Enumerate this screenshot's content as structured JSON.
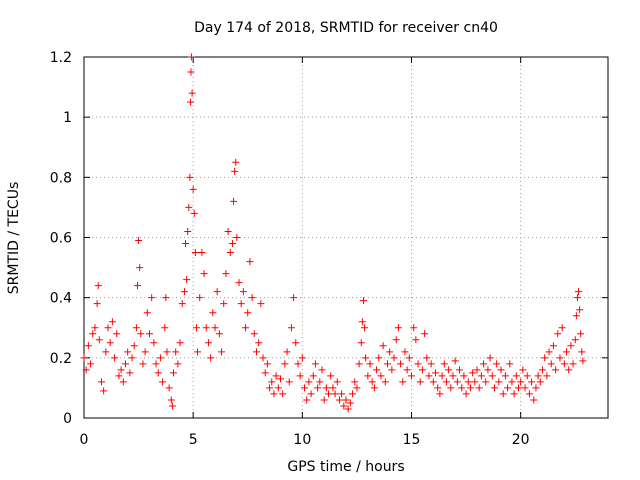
{
  "chart_data": {
    "type": "scatter",
    "title": "Day 174 of 2018, SRMTID for receiver cn40",
    "xlabel": "GPS time / hours",
    "ylabel": "SRMTID / TECUs",
    "xlim": [
      0,
      24
    ],
    "ylim": [
      0,
      1.2
    ],
    "x_ticks": [
      0,
      5,
      10,
      15,
      20
    ],
    "x_tick_labels": [
      "0",
      "5",
      "10",
      "15",
      "20"
    ],
    "y_ticks": [
      0,
      0.2,
      0.4,
      0.6,
      0.8,
      1.0,
      1.2
    ],
    "y_tick_labels": [
      "0",
      "0.2",
      "0.4",
      "0.6",
      "0.8",
      "1",
      "1.2"
    ],
    "grid": true,
    "marker": "+",
    "color": "#ff0000",
    "series": [
      {
        "name": "SRMTID",
        "points": [
          [
            0.0,
            0.2
          ],
          [
            0.1,
            0.16
          ],
          [
            0.2,
            0.24
          ],
          [
            0.3,
            0.18
          ],
          [
            0.4,
            0.28
          ],
          [
            0.5,
            0.3
          ],
          [
            0.6,
            0.38
          ],
          [
            0.65,
            0.44
          ],
          [
            0.7,
            0.26
          ],
          [
            0.8,
            0.12
          ],
          [
            0.9,
            0.09
          ],
          [
            1.0,
            0.22
          ],
          [
            1.1,
            0.3
          ],
          [
            1.2,
            0.25
          ],
          [
            1.3,
            0.32
          ],
          [
            1.4,
            0.2
          ],
          [
            1.5,
            0.28
          ],
          [
            1.6,
            0.14
          ],
          [
            1.7,
            0.16
          ],
          [
            1.8,
            0.12
          ],
          [
            1.9,
            0.18
          ],
          [
            2.0,
            0.22
          ],
          [
            2.1,
            0.15
          ],
          [
            2.2,
            0.2
          ],
          [
            2.3,
            0.24
          ],
          [
            2.4,
            0.3
          ],
          [
            2.45,
            0.44
          ],
          [
            2.5,
            0.59
          ],
          [
            2.55,
            0.5
          ],
          [
            2.6,
            0.28
          ],
          [
            2.7,
            0.18
          ],
          [
            2.8,
            0.22
          ],
          [
            2.9,
            0.35
          ],
          [
            3.0,
            0.28
          ],
          [
            3.1,
            0.4
          ],
          [
            3.2,
            0.25
          ],
          [
            3.3,
            0.18
          ],
          [
            3.4,
            0.15
          ],
          [
            3.5,
            0.2
          ],
          [
            3.6,
            0.12
          ],
          [
            3.7,
            0.3
          ],
          [
            3.75,
            0.4
          ],
          [
            3.8,
            0.22
          ],
          [
            3.9,
            0.1
          ],
          [
            4.0,
            0.06
          ],
          [
            4.05,
            0.04
          ],
          [
            4.1,
            0.15
          ],
          [
            4.2,
            0.22
          ],
          [
            4.3,
            0.18
          ],
          [
            4.4,
            0.25
          ],
          [
            4.5,
            0.38
          ],
          [
            4.6,
            0.42
          ],
          [
            4.65,
            0.58
          ],
          [
            4.7,
            0.46
          ],
          [
            4.75,
            0.62
          ],
          [
            4.8,
            0.7
          ],
          [
            4.85,
            0.8
          ],
          [
            4.88,
            1.05
          ],
          [
            4.9,
            1.15
          ],
          [
            4.92,
            1.2
          ],
          [
            4.95,
            1.08
          ],
          [
            5.0,
            0.76
          ],
          [
            5.05,
            0.68
          ],
          [
            5.1,
            0.55
          ],
          [
            5.15,
            0.3
          ],
          [
            5.2,
            0.22
          ],
          [
            5.3,
            0.4
          ],
          [
            5.4,
            0.55
          ],
          [
            5.5,
            0.48
          ],
          [
            5.6,
            0.3
          ],
          [
            5.7,
            0.25
          ],
          [
            5.8,
            0.2
          ],
          [
            5.9,
            0.35
          ],
          [
            6.0,
            0.3
          ],
          [
            6.1,
            0.42
          ],
          [
            6.2,
            0.28
          ],
          [
            6.3,
            0.22
          ],
          [
            6.4,
            0.38
          ],
          [
            6.5,
            0.48
          ],
          [
            6.6,
            0.62
          ],
          [
            6.7,
            0.55
          ],
          [
            6.8,
            0.58
          ],
          [
            6.85,
            0.72
          ],
          [
            6.9,
            0.82
          ],
          [
            6.95,
            0.85
          ],
          [
            7.0,
            0.6
          ],
          [
            7.1,
            0.45
          ],
          [
            7.2,
            0.38
          ],
          [
            7.3,
            0.42
          ],
          [
            7.4,
            0.3
          ],
          [
            7.5,
            0.35
          ],
          [
            7.6,
            0.52
          ],
          [
            7.7,
            0.4
          ],
          [
            7.8,
            0.28
          ],
          [
            7.9,
            0.22
          ],
          [
            8.0,
            0.25
          ],
          [
            8.1,
            0.38
          ],
          [
            8.2,
            0.2
          ],
          [
            8.3,
            0.15
          ],
          [
            8.4,
            0.18
          ],
          [
            8.5,
            0.1
          ],
          [
            8.6,
            0.12
          ],
          [
            8.7,
            0.08
          ],
          [
            8.8,
            0.14
          ],
          [
            8.9,
            0.1
          ],
          [
            9.0,
            0.13
          ],
          [
            9.1,
            0.08
          ],
          [
            9.2,
            0.18
          ],
          [
            9.3,
            0.22
          ],
          [
            9.4,
            0.12
          ],
          [
            9.5,
            0.3
          ],
          [
            9.6,
            0.4
          ],
          [
            9.7,
            0.25
          ],
          [
            9.8,
            0.18
          ],
          [
            9.9,
            0.14
          ],
          [
            10.0,
            0.2
          ],
          [
            10.1,
            0.1
          ],
          [
            10.2,
            0.06
          ],
          [
            10.3,
            0.12
          ],
          [
            10.4,
            0.08
          ],
          [
            10.5,
            0.14
          ],
          [
            10.6,
            0.18
          ],
          [
            10.7,
            0.1
          ],
          [
            10.8,
            0.12
          ],
          [
            10.9,
            0.16
          ],
          [
            11.0,
            0.06
          ],
          [
            11.1,
            0.1
          ],
          [
            11.2,
            0.08
          ],
          [
            11.3,
            0.14
          ],
          [
            11.4,
            0.1
          ],
          [
            11.5,
            0.08
          ],
          [
            11.6,
            0.12
          ],
          [
            11.7,
            0.06
          ],
          [
            11.8,
            0.08
          ],
          [
            11.9,
            0.04
          ],
          [
            12.0,
            0.06
          ],
          [
            12.1,
            0.03
          ],
          [
            12.2,
            0.05
          ],
          [
            12.3,
            0.08
          ],
          [
            12.4,
            0.12
          ],
          [
            12.5,
            0.1
          ],
          [
            12.6,
            0.18
          ],
          [
            12.7,
            0.25
          ],
          [
            12.75,
            0.32
          ],
          [
            12.8,
            0.39
          ],
          [
            12.85,
            0.3
          ],
          [
            12.9,
            0.2
          ],
          [
            13.0,
            0.14
          ],
          [
            13.1,
            0.18
          ],
          [
            13.2,
            0.12
          ],
          [
            13.3,
            0.1
          ],
          [
            13.4,
            0.16
          ],
          [
            13.5,
            0.2
          ],
          [
            13.6,
            0.14
          ],
          [
            13.7,
            0.24
          ],
          [
            13.8,
            0.12
          ],
          [
            13.9,
            0.18
          ],
          [
            14.0,
            0.22
          ],
          [
            14.1,
            0.16
          ],
          [
            14.2,
            0.2
          ],
          [
            14.3,
            0.26
          ],
          [
            14.4,
            0.3
          ],
          [
            14.5,
            0.18
          ],
          [
            14.6,
            0.12
          ],
          [
            14.7,
            0.22
          ],
          [
            14.8,
            0.16
          ],
          [
            14.9,
            0.2
          ],
          [
            15.0,
            0.14
          ],
          [
            15.1,
            0.3
          ],
          [
            15.2,
            0.26
          ],
          [
            15.3,
            0.18
          ],
          [
            15.4,
            0.12
          ],
          [
            15.5,
            0.16
          ],
          [
            15.6,
            0.28
          ],
          [
            15.7,
            0.2
          ],
          [
            15.8,
            0.14
          ],
          [
            15.9,
            0.18
          ],
          [
            16.0,
            0.12
          ],
          [
            16.1,
            0.15
          ],
          [
            16.2,
            0.1
          ],
          [
            16.3,
            0.08
          ],
          [
            16.4,
            0.14
          ],
          [
            16.5,
            0.18
          ],
          [
            16.6,
            0.12
          ],
          [
            16.7,
            0.16
          ],
          [
            16.8,
            0.1
          ],
          [
            16.9,
            0.14
          ],
          [
            17.0,
            0.19
          ],
          [
            17.1,
            0.12
          ],
          [
            17.2,
            0.16
          ],
          [
            17.3,
            0.1
          ],
          [
            17.4,
            0.14
          ],
          [
            17.5,
            0.08
          ],
          [
            17.6,
            0.12
          ],
          [
            17.7,
            0.1
          ],
          [
            17.8,
            0.15
          ],
          [
            17.9,
            0.12
          ],
          [
            18.0,
            0.16
          ],
          [
            18.1,
            0.1
          ],
          [
            18.2,
            0.14
          ],
          [
            18.3,
            0.18
          ],
          [
            18.4,
            0.12
          ],
          [
            18.5,
            0.16
          ],
          [
            18.6,
            0.2
          ],
          [
            18.7,
            0.14
          ],
          [
            18.8,
            0.1
          ],
          [
            18.9,
            0.18
          ],
          [
            19.0,
            0.12
          ],
          [
            19.1,
            0.16
          ],
          [
            19.2,
            0.08
          ],
          [
            19.3,
            0.14
          ],
          [
            19.4,
            0.1
          ],
          [
            19.5,
            0.18
          ],
          [
            19.6,
            0.12
          ],
          [
            19.7,
            0.08
          ],
          [
            19.8,
            0.14
          ],
          [
            19.9,
            0.1
          ],
          [
            20.0,
            0.12
          ],
          [
            20.1,
            0.16
          ],
          [
            20.2,
            0.1
          ],
          [
            20.3,
            0.14
          ],
          [
            20.4,
            0.08
          ],
          [
            20.5,
            0.12
          ],
          [
            20.6,
            0.06
          ],
          [
            20.7,
            0.1
          ],
          [
            20.8,
            0.14
          ],
          [
            20.9,
            0.12
          ],
          [
            21.0,
            0.16
          ],
          [
            21.1,
            0.2
          ],
          [
            21.2,
            0.14
          ],
          [
            21.3,
            0.22
          ],
          [
            21.4,
            0.18
          ],
          [
            21.5,
            0.24
          ],
          [
            21.6,
            0.16
          ],
          [
            21.7,
            0.28
          ],
          [
            21.8,
            0.2
          ],
          [
            21.9,
            0.3
          ],
          [
            22.0,
            0.18
          ],
          [
            22.1,
            0.22
          ],
          [
            22.2,
            0.16
          ],
          [
            22.3,
            0.24
          ],
          [
            22.4,
            0.18
          ],
          [
            22.5,
            0.26
          ],
          [
            22.55,
            0.34
          ],
          [
            22.6,
            0.4
          ],
          [
            22.65,
            0.42
          ],
          [
            22.7,
            0.36
          ],
          [
            22.75,
            0.28
          ],
          [
            22.8,
            0.22
          ],
          [
            22.85,
            0.19
          ]
        ]
      }
    ]
  }
}
